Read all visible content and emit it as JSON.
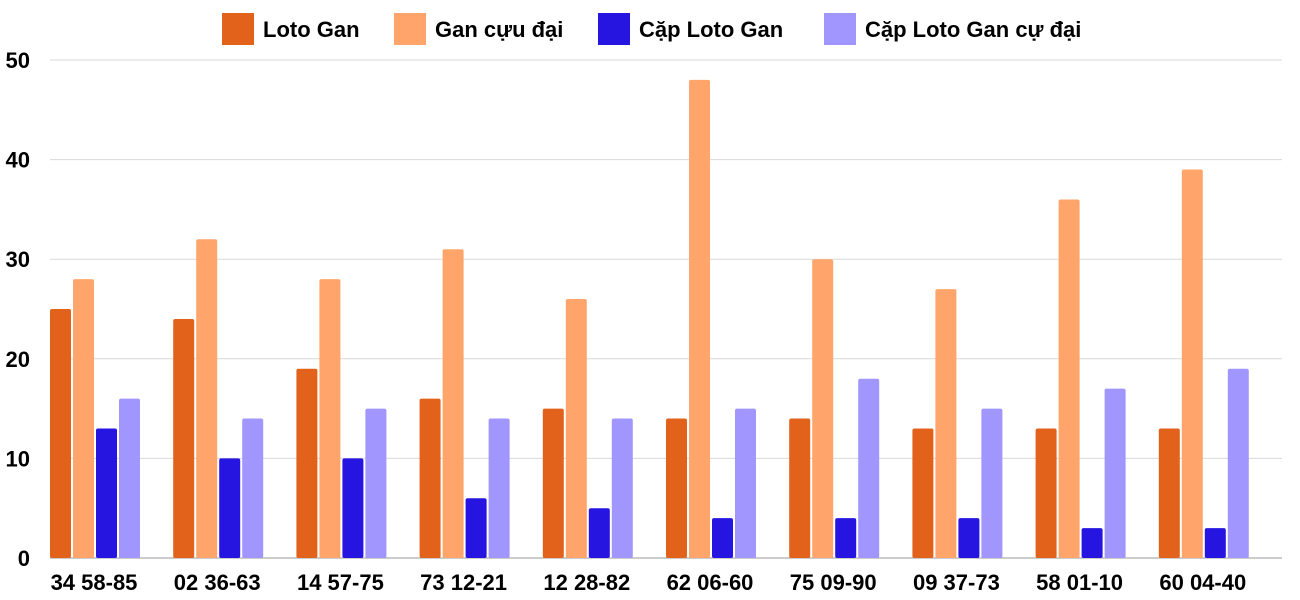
{
  "chart_data": {
    "type": "bar",
    "title": "",
    "xlabel": "",
    "ylabel": "",
    "ylim": [
      0,
      50
    ],
    "yticks": [
      0,
      10,
      20,
      30,
      40,
      50
    ],
    "grid": true,
    "legend_position": "top",
    "categories": [
      "34 58-85",
      "02 36-63",
      "14 57-75",
      "73 12-21",
      "12 28-82",
      "62 06-60",
      "75 09-90",
      "09 37-73",
      "58 01-10",
      "60 04-40"
    ],
    "series": [
      {
        "name": "Loto Gan",
        "color": "#e2621b",
        "values": [
          25,
          24,
          19,
          16,
          15,
          14,
          14,
          13,
          13,
          13
        ]
      },
      {
        "name": "Gan cựu đại",
        "color": "#ffa56b",
        "values": [
          28,
          32,
          28,
          31,
          26,
          48,
          30,
          27,
          36,
          39
        ]
      },
      {
        "name": "Cặp Loto Gan",
        "color": "#2614e0",
        "values": [
          13,
          10,
          10,
          6,
          5,
          4,
          4,
          4,
          3,
          3
        ]
      },
      {
        "name": "Cặp Loto Gan cự đại",
        "color": "#a196fd",
        "values": [
          16,
          14,
          15,
          14,
          14,
          15,
          18,
          15,
          17,
          19
        ]
      }
    ]
  }
}
